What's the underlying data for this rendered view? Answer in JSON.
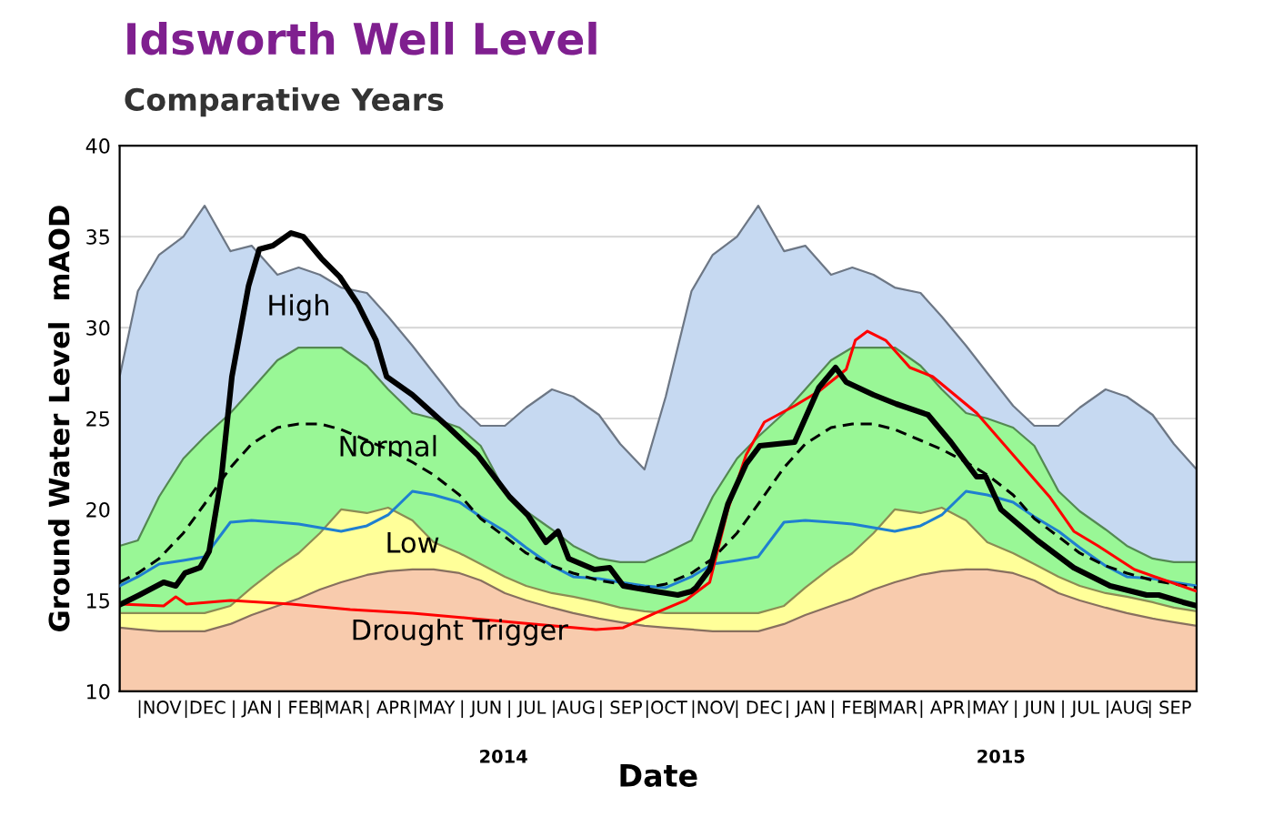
{
  "chart_data": {
    "type": "area",
    "title": "Idsworth Well Level",
    "subtitle": "Comparative Years",
    "xlabel": "Date",
    "ylabel": "Ground Water Level  mAOD",
    "x": [
      "2013-10-20",
      "2013-11-01",
      "2013-11-15",
      "2013-12-01",
      "2013-12-15",
      "2014-01-01",
      "2014-01-15",
      "2014-02-01",
      "2014-02-15",
      "2014-03-01",
      "2014-03-15",
      "2014-04-01",
      "2014-04-15",
      "2014-05-01",
      "2014-05-15",
      "2014-06-01",
      "2014-06-15",
      "2014-07-01",
      "2014-07-15",
      "2014-08-01",
      "2014-08-15",
      "2014-09-01",
      "2014-09-15",
      "2014-10-01",
      "2014-10-15",
      "2014-11-01",
      "2014-11-15",
      "2014-12-01",
      "2014-12-15",
      "2015-01-01",
      "2015-01-15",
      "2015-02-01",
      "2015-02-15",
      "2015-03-01",
      "2015-03-15",
      "2015-04-01",
      "2015-04-15",
      "2015-05-01",
      "2015-05-15",
      "2015-06-01",
      "2015-06-15",
      "2015-07-01",
      "2015-07-15",
      "2015-08-01",
      "2015-08-15",
      "2015-09-01",
      "2015-09-15",
      "2015-09-30"
    ],
    "series": [
      {
        "color": "#c6d9f1",
        "values": [
          27.3,
          32,
          34,
          35,
          36.7,
          34.2,
          34.5,
          32.9,
          33.3,
          32.9,
          32.2,
          31.9,
          30.6,
          29,
          27.5,
          25.7,
          24.6,
          24.6,
          25.6,
          26.6,
          26.2,
          25.2,
          23.6,
          22.2,
          26.2,
          32,
          34,
          35,
          36.7,
          34.2,
          34.5,
          32.9,
          33.3,
          32.9,
          32.2,
          31.9,
          30.6,
          29,
          27.5,
          25.7,
          24.6,
          24.6,
          25.6,
          26.6,
          26.2,
          25.2,
          23.6,
          22.2
        ]
      },
      {
        "color": "#99f796",
        "values": [
          18,
          18.3,
          20.7,
          22.8,
          24,
          25.3,
          26.6,
          28.2,
          28.9,
          28.9,
          28.9,
          27.9,
          26.6,
          25.3,
          25,
          24.5,
          23.5,
          21,
          19.9,
          18.9,
          18,
          17.3,
          17.1,
          17.1,
          17.6,
          18.3,
          20.7,
          22.8,
          24,
          25.3,
          26.6,
          28.2,
          28.9,
          28.9,
          28.9,
          27.9,
          26.6,
          25.3,
          25,
          24.5,
          23.5,
          21,
          19.9,
          18.9,
          18,
          17.3,
          17.1,
          17.1
        ]
      },
      {
        "color": "#ffff99",
        "values": [
          14.3,
          14.3,
          14.3,
          14.3,
          14.3,
          14.7,
          15.7,
          16.8,
          17.6,
          18.7,
          20,
          19.8,
          20.1,
          19.4,
          18.2,
          17.6,
          17,
          16.3,
          15.8,
          15.4,
          15.2,
          14.9,
          14.6,
          14.4,
          14.3,
          14.3,
          14.3,
          14.3,
          14.3,
          14.7,
          15.7,
          16.8,
          17.6,
          18.7,
          20,
          19.8,
          20.1,
          19.4,
          18.2,
          17.6,
          17,
          16.3,
          15.8,
          15.4,
          15.2,
          14.9,
          14.6,
          14.4
        ]
      },
      {
        "color": "#f8cbad",
        "values": [
          13.5,
          13.4,
          13.3,
          13.3,
          13.3,
          13.7,
          14.2,
          14.7,
          15.1,
          15.6,
          16,
          16.4,
          16.6,
          16.7,
          16.7,
          16.5,
          16.1,
          15.4,
          15,
          14.6,
          14.3,
          14,
          13.8,
          13.6,
          13.5,
          13.4,
          13.3,
          13.3,
          13.3,
          13.7,
          14.2,
          14.7,
          15.1,
          15.6,
          16,
          16.4,
          16.6,
          16.7,
          16.7,
          16.5,
          16.1,
          15.4,
          15,
          14.6,
          14.3,
          14,
          13.8,
          13.6
        ]
      },
      {
        "type": "line",
        "color": "#1f7fd0",
        "values": [
          15.8,
          16.3,
          17,
          17.2,
          17.4,
          19.3,
          19.4,
          19.3,
          19.2,
          19,
          18.8,
          19.1,
          19.7,
          21,
          20.8,
          20.4,
          19.6,
          18.8,
          17.9,
          16.9,
          16.3,
          16.2,
          16,
          15.8,
          15.7,
          16.3,
          17,
          17.2,
          17.4,
          19.3,
          19.4,
          19.3,
          19.2,
          19,
          18.8,
          19.1,
          19.7,
          21,
          20.8,
          20.4,
          19.6,
          18.8,
          17.9,
          16.9,
          16.3,
          16.2,
          16,
          15.8
        ]
      },
      {
        "type": "line",
        "color": "#000000",
        "line_style": "dashed",
        "values": [
          16,
          16.5,
          17.3,
          18.7,
          20.3,
          22.3,
          23.6,
          24.5,
          24.7,
          24.7,
          24.4,
          23.8,
          23.3,
          22.6,
          21.9,
          20.8,
          19.5,
          18.5,
          17.6,
          16.9,
          16.5,
          16.1,
          15.9,
          15.7,
          15.9,
          16.5,
          17.3,
          18.7,
          20.3,
          22.3,
          23.6,
          24.5,
          24.7,
          24.7,
          24.4,
          23.8,
          23.3,
          22.6,
          21.9,
          20.8,
          19.5,
          18.5,
          17.6,
          16.9,
          16.5,
          16.1,
          15.9,
          15.7
        ]
      },
      {
        "type": "line",
        "color": "#ff0000",
        "x": [
          "2013-10-21",
          "2013-11-18",
          "2013-11-26",
          "2013-12-03",
          "2014-01-01",
          "2014-02-10",
          "2014-03-21",
          "2014-05-01",
          "2014-06-10",
          "2014-07-20",
          "2014-08-30",
          "2014-09-17",
          "2014-10-08",
          "2014-10-28",
          "2014-11-13",
          "2014-11-25",
          "2014-12-07",
          "2014-12-19",
          "2015-01-08",
          "2015-01-24",
          "2015-02-11",
          "2015-02-17",
          "2015-02-25",
          "2015-03-09",
          "2015-03-25",
          "2015-04-09",
          "2015-05-08",
          "2015-06-01",
          "2015-06-25",
          "2015-07-11",
          "2015-07-27",
          "2015-08-20",
          "2015-09-30"
        ],
        "values": [
          14.8,
          14.7,
          15.2,
          14.8,
          15,
          14.8,
          14.5,
          14.3,
          14,
          13.7,
          13.4,
          13.5,
          14.3,
          15,
          16,
          20,
          23,
          24.8,
          25.7,
          26.5,
          27.7,
          29.3,
          29.8,
          29.3,
          27.8,
          27.3,
          25.3,
          23,
          20.7,
          18.8,
          18,
          16.7,
          15.5
        ]
      },
      {
        "type": "line",
        "color": "#000000",
        "x": [
          "2013-10-21",
          "2013-11-02",
          "2013-11-18",
          "2013-11-26",
          "2013-12-02",
          "2013-12-12",
          "2013-12-18",
          "2013-12-26",
          "2014-01-02",
          "2014-01-13",
          "2014-01-20",
          "2014-01-29",
          "2014-02-10",
          "2014-02-18",
          "2014-03-02",
          "2014-03-14",
          "2014-03-26",
          "2014-04-07",
          "2014-04-14",
          "2014-05-01",
          "2014-05-25",
          "2014-06-13",
          "2014-07-04",
          "2014-07-16",
          "2014-07-28",
          "2014-08-05",
          "2014-08-12",
          "2014-08-29",
          "2014-09-08",
          "2014-09-17",
          "2014-10-08",
          "2014-10-23",
          "2014-11-01",
          "2014-11-04",
          "2014-11-13",
          "2014-11-25",
          "2014-12-07",
          "2014-12-16",
          "2015-01-08",
          "2015-01-24",
          "2015-02-04",
          "2015-02-11",
          "2015-03-01",
          "2015-03-16",
          "2015-04-06",
          "2015-04-21",
          "2015-05-08",
          "2015-05-14",
          "2015-05-24",
          "2015-06-17",
          "2015-07-11",
          "2015-08-04",
          "2015-08-28",
          "2015-09-05",
          "2015-09-21",
          "2015-09-30"
        ],
        "values": [
          14.8,
          15.3,
          16,
          15.8,
          16.5,
          16.8,
          17.7,
          21.7,
          27.3,
          32.3,
          34.3,
          34.5,
          35.2,
          35,
          33.8,
          32.8,
          31.3,
          29.3,
          27.3,
          26.3,
          24.5,
          23,
          20.7,
          19.7,
          18.2,
          18.8,
          17.3,
          16.7,
          16.8,
          15.8,
          15.5,
          15.3,
          15.5,
          15.7,
          16.7,
          20.3,
          22.5,
          23.5,
          23.7,
          26.7,
          27.8,
          27,
          26.3,
          25.8,
          25.2,
          23.7,
          21.8,
          21.8,
          20,
          18.3,
          16.8,
          15.8,
          15.3,
          15.3,
          14.9,
          14.7
        ]
      }
    ],
    "annotations": [
      "High",
      "Normal",
      "Low",
      "Drought Trigger"
    ],
    "xlim": [
      "2013-10-20",
      "2015-09-30"
    ],
    "xticks": [
      {
        "value": "2013-11-15",
        "label": "|NOV"
      },
      {
        "value": "2013-12-15",
        "label": "|DEC"
      },
      {
        "value": "2014-01-15",
        "label": "| JAN"
      },
      {
        "value": "2014-02-15",
        "label": "| FEB"
      },
      {
        "value": "2014-03-15",
        "label": "|MAR"
      },
      {
        "value": "2014-04-15",
        "label": "| APR"
      },
      {
        "value": "2014-05-15",
        "label": "|MAY"
      },
      {
        "value": "2014-06-15",
        "label": "| JUN"
      },
      {
        "value": "2014-07-15",
        "label": "| JUL"
      },
      {
        "value": "2014-08-15",
        "label": "|AUG"
      },
      {
        "value": "2014-09-15",
        "label": "| SEP"
      },
      {
        "value": "2014-10-15",
        "label": "|OCT"
      },
      {
        "value": "2014-11-15",
        "label": "|NOV"
      },
      {
        "value": "2014-12-15",
        "label": "| DEC"
      },
      {
        "value": "2015-01-15",
        "label": "| JAN"
      },
      {
        "value": "2015-02-15",
        "label": "| FEB"
      },
      {
        "value": "2015-03-15",
        "label": "|MAR"
      },
      {
        "value": "2015-04-15",
        "label": "| APR"
      },
      {
        "value": "2015-05-15",
        "label": "|MAY"
      },
      {
        "value": "2015-06-15",
        "label": "| JUN"
      },
      {
        "value": "2015-07-15",
        "label": "| JUL"
      },
      {
        "value": "2015-08-15",
        "label": "|AUG"
      },
      {
        "value": "2015-09-12",
        "label": "| SEP"
      }
    ],
    "x2lim": [
      "2013-10-20",
      "2015-09-30"
    ],
    "x2ticks": [
      {
        "value": "2014-06-30",
        "label": "2014"
      },
      {
        "value": "2015-05-24",
        "label": "2015"
      }
    ],
    "ylim": [
      10,
      40
    ],
    "yticks": [
      10,
      15,
      20,
      25,
      30,
      35,
      40
    ],
    "grid": "y"
  }
}
